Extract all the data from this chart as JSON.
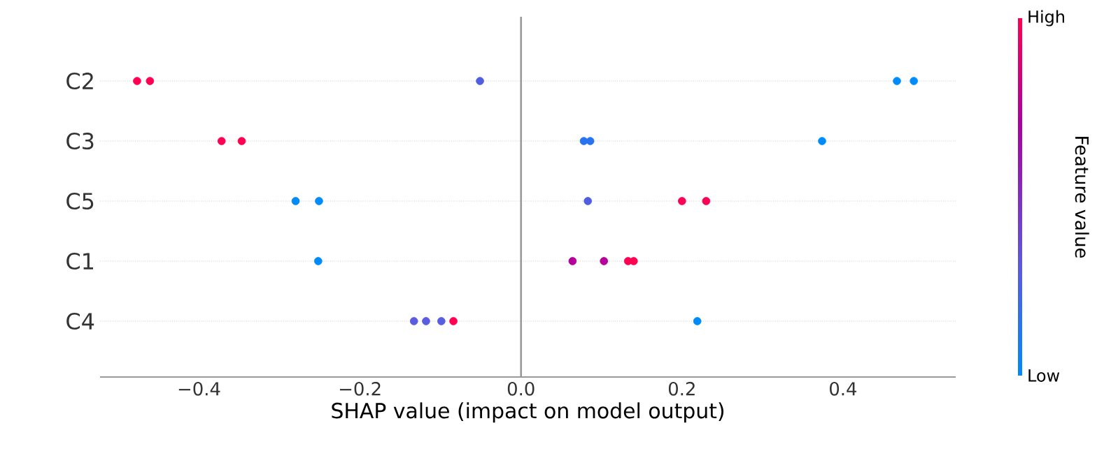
{
  "chart_data": {
    "type": "scatter",
    "orientation": "horizontal",
    "xlabel": "SHAP value (impact on model output)",
    "clabel": "Feature value",
    "categories": [
      "C2",
      "C3",
      "C5",
      "C1",
      "C4"
    ],
    "series": [
      {
        "values": [
          -0.477,
          -0.372,
          -0.28,
          -0.252,
          -0.133
        ],
        "colors": [
          "#ff0052",
          "#ff0052",
          "#008bfb",
          "#008bfb",
          "#5a5de0"
        ]
      },
      {
        "values": [
          -0.461,
          -0.347,
          -0.251,
          0.064,
          -0.118
        ],
        "colors": [
          "#ff0052",
          "#ff0052",
          "#008bfb",
          "#b5009c",
          "#5a5de0"
        ]
      },
      {
        "values": [
          -0.051,
          0.078,
          0.083,
          0.103,
          -0.099
        ],
        "colors": [
          "#4f5ee0",
          "#2a73ef",
          "#4f5ee0",
          "#b5009c",
          "#5a5de0"
        ]
      },
      {
        "values": [
          0.467,
          0.086,
          0.2,
          0.133,
          -0.084
        ],
        "colors": [
          "#008bfb",
          "#2a73ef",
          "#ff0052",
          "#ff0052",
          "#ff0052"
        ]
      },
      {
        "values": [
          0.488,
          0.374,
          0.23,
          0.14,
          0.219
        ],
        "colors": [
          "#008bfb",
          "#008bfb",
          "#ff0052",
          "#ff0052",
          "#008bfb"
        ]
      }
    ],
    "xlim": [
      -0.523,
      0.54
    ],
    "xticks": [
      {
        "value": -0.4,
        "label": "−0.4"
      },
      {
        "value": -0.2,
        "label": "−0.2"
      },
      {
        "value": 0,
        "label": "0.0"
      },
      {
        "value": 0.2,
        "label": "0.2"
      },
      {
        "value": 0.4,
        "label": "0.4"
      }
    ],
    "annotations": [
      "High",
      "Low"
    ],
    "ref_lines": [
      {
        "axis": "x",
        "value": 0,
        "color": "#999999"
      }
    ],
    "grid": "y",
    "marker": "circle"
  }
}
